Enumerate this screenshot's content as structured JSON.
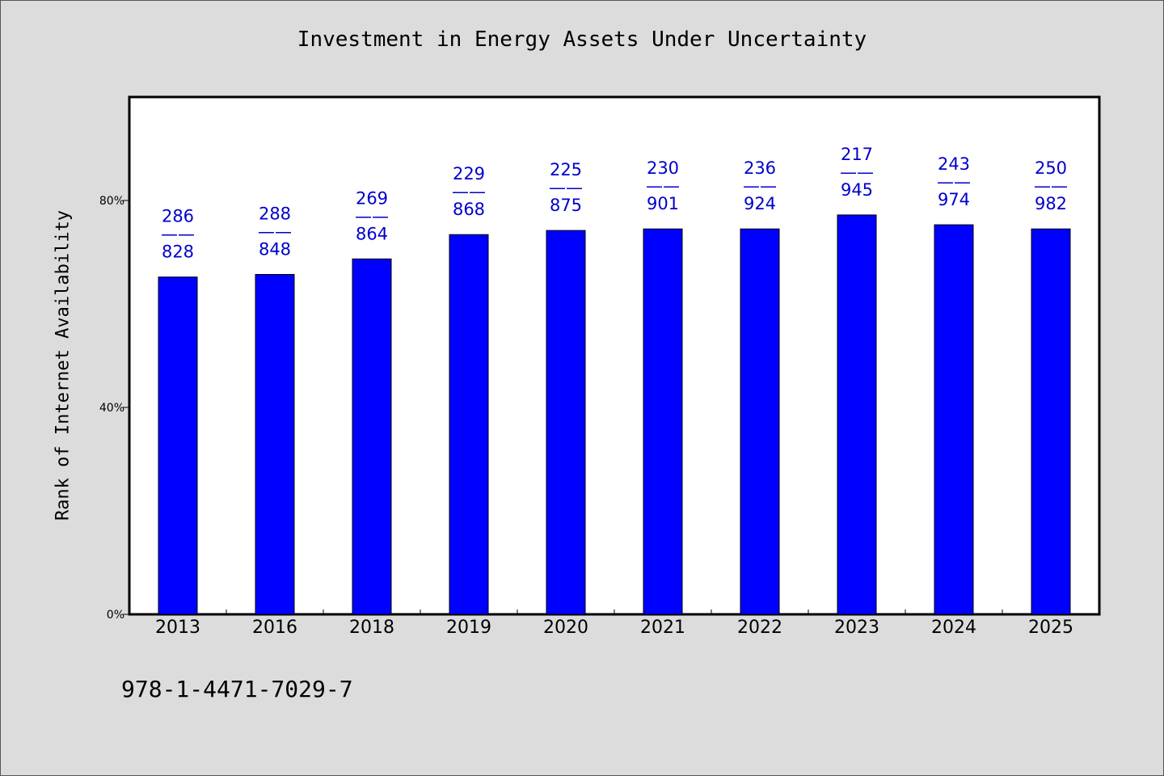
{
  "chart_data": {
    "type": "bar",
    "title": "Investment in Energy Assets Under Uncertainty",
    "xlabel": "",
    "ylabel": "Rank of Internet Availability",
    "categories": [
      "2013",
      "2016",
      "2018",
      "2019",
      "2020",
      "2021",
      "2022",
      "2023",
      "2024",
      "2025"
    ],
    "values": [
      65.2,
      65.7,
      68.7,
      73.4,
      74.2,
      74.5,
      74.5,
      77.2,
      75.3,
      74.5
    ],
    "data_labels": [
      {
        "top": "286",
        "sep": "——",
        "bottom": "828"
      },
      {
        "top": "288",
        "sep": "——",
        "bottom": "848"
      },
      {
        "top": "269",
        "sep": "——",
        "bottom": "864"
      },
      {
        "top": "229",
        "sep": "——",
        "bottom": "868"
      },
      {
        "top": "225",
        "sep": "——",
        "bottom": "875"
      },
      {
        "top": "230",
        "sep": "——",
        "bottom": "901"
      },
      {
        "top": "236",
        "sep": "——",
        "bottom": "924"
      },
      {
        "top": "217",
        "sep": "——",
        "bottom": "945"
      },
      {
        "top": "243",
        "sep": "——",
        "bottom": "974"
      },
      {
        "top": "250",
        "sep": "——",
        "bottom": "982"
      }
    ],
    "yticks": [
      0,
      40,
      80
    ],
    "ytick_labels": [
      "0%",
      "40%",
      "80%"
    ],
    "ylim": [
      0,
      100
    ],
    "grid": false,
    "colors": {
      "bar": "#0000ff",
      "label": "#0000cc",
      "plot_bg": "#ffffff",
      "page_bg": "#dcdcdc"
    }
  },
  "footer_note": "978-1-4471-7029-7"
}
